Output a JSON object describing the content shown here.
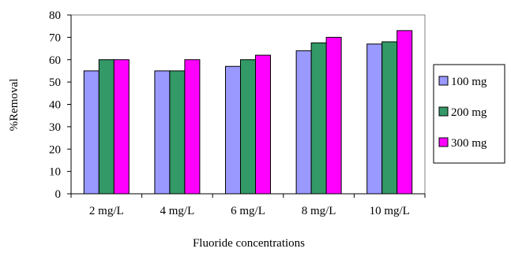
{
  "chart_data": {
    "type": "bar",
    "title": "",
    "xlabel": "Fluoride concentrations",
    "ylabel": "%Removal",
    "ylim": [
      0,
      80
    ],
    "yticks": [
      0,
      10,
      20,
      30,
      40,
      50,
      60,
      70,
      80
    ],
    "grid": false,
    "legend_position": "right",
    "categories": [
      "2 mg/L",
      "4 mg/L",
      "6 mg/L",
      "8 mg/L",
      "10 mg/L"
    ],
    "series": [
      {
        "name": "100 mg",
        "color": "#9999ff",
        "values": [
          55,
          55,
          57,
          64,
          67
        ]
      },
      {
        "name": "200 mg",
        "color": "#339966",
        "values": [
          60,
          55,
          60,
          67.5,
          68
        ]
      },
      {
        "name": "300 mg",
        "color": "#ff00ff",
        "values": [
          60,
          60,
          62,
          70,
          73
        ]
      }
    ]
  }
}
